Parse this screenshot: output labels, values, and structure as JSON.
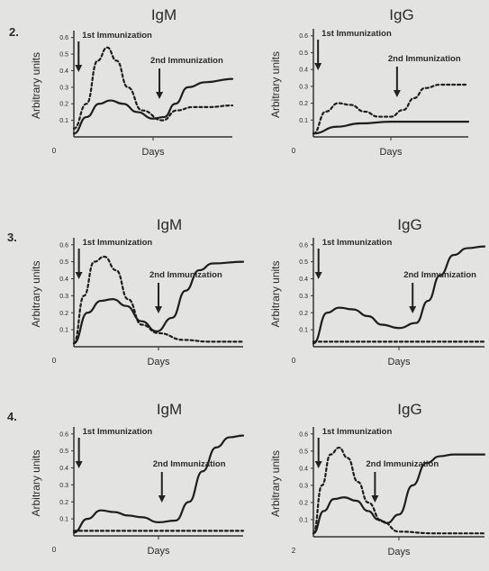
{
  "rows": [
    {
      "number": "2."
    },
    {
      "number": "3."
    },
    {
      "number": "4."
    }
  ],
  "chart_data": [
    {
      "type": "line",
      "row": 1,
      "col": 1,
      "title": "IgM",
      "xlabel": "Days",
      "ylabel": "Arbitrary units",
      "yticks": [
        "0.6",
        "0.5",
        "0.4",
        "0.3",
        "0.2",
        "0.1"
      ],
      "ylim": [
        0,
        0.62
      ],
      "xtick_origin": "0",
      "xlim": [
        0,
        10
      ],
      "series": [
        {
          "style": "dashed",
          "x": [
            0,
            0.8,
            1.5,
            2.1,
            2.7,
            3.4,
            4.3,
            5.6,
            6.5,
            7.5,
            8.5,
            10
          ],
          "y": [
            0.05,
            0.2,
            0.46,
            0.54,
            0.46,
            0.3,
            0.16,
            0.1,
            0.16,
            0.18,
            0.18,
            0.19
          ]
        },
        {
          "style": "solid",
          "x": [
            0,
            0.8,
            1.6,
            2.3,
            3.1,
            4.0,
            5.0,
            5.7,
            6.4,
            7.2,
            8.3,
            10
          ],
          "y": [
            0.02,
            0.12,
            0.2,
            0.22,
            0.2,
            0.15,
            0.11,
            0.12,
            0.2,
            0.3,
            0.33,
            0.35
          ]
        }
      ],
      "annotations": [
        {
          "text": "1st Immunization",
          "x": 0.3
        },
        {
          "text": "2nd Immunization",
          "x": 5.4
        }
      ]
    },
    {
      "type": "line",
      "row": 1,
      "col": 2,
      "title": "IgG",
      "xlabel": "Days",
      "ylabel": "Arbitrary units",
      "yticks": [
        "0.6",
        "0.5",
        "0.4",
        "0.3",
        "0.2",
        "0.1"
      ],
      "ylim": [
        0,
        0.62
      ],
      "xtick_origin": "0",
      "xlim": [
        0,
        10
      ],
      "series": [
        {
          "style": "dashed",
          "x": [
            0,
            0.8,
            1.6,
            2.4,
            3.3,
            4.2,
            5.0,
            5.8,
            6.5,
            7.2,
            8.2,
            10
          ],
          "y": [
            0.02,
            0.15,
            0.2,
            0.19,
            0.15,
            0.12,
            0.12,
            0.16,
            0.23,
            0.29,
            0.31,
            0.31
          ]
        },
        {
          "style": "solid",
          "x": [
            0,
            1.5,
            3,
            5,
            7,
            10
          ],
          "y": [
            0.02,
            0.06,
            0.08,
            0.09,
            0.09,
            0.09
          ]
        }
      ],
      "annotations": [
        {
          "text": "1st Immunization",
          "x": 0.3
        },
        {
          "text": "2nd Immunization",
          "x": 5.4
        }
      ]
    },
    {
      "type": "line",
      "row": 2,
      "col": 1,
      "title": "IgM",
      "xlabel": "Days",
      "ylabel": "Arbitrary units",
      "yticks": [
        "0.6",
        "0.5",
        "0.4",
        "0.3",
        "0.2",
        "0.1"
      ],
      "ylim": [
        0,
        0.62
      ],
      "xtick_origin": "0",
      "xlim": [
        0,
        10
      ],
      "series": [
        {
          "style": "dashed",
          "x": [
            0,
            0.6,
            1.2,
            1.8,
            2.5,
            3.2,
            4.0,
            5.0,
            6.5,
            8,
            10
          ],
          "y": [
            0.02,
            0.3,
            0.5,
            0.53,
            0.45,
            0.28,
            0.13,
            0.08,
            0.04,
            0.03,
            0.03
          ]
        },
        {
          "style": "solid",
          "x": [
            0,
            0.8,
            1.6,
            2.3,
            3.1,
            4.0,
            4.9,
            5.8,
            6.6,
            7.4,
            8.2,
            10
          ],
          "y": [
            0.02,
            0.2,
            0.27,
            0.28,
            0.24,
            0.15,
            0.09,
            0.17,
            0.33,
            0.45,
            0.49,
            0.5
          ]
        }
      ],
      "annotations": [
        {
          "text": "1st Immunization",
          "x": 0.3
        },
        {
          "text": "2nd Immunization",
          "x": 5.0
        }
      ]
    },
    {
      "type": "line",
      "row": 2,
      "col": 2,
      "title": "IgG",
      "xlabel": "Days",
      "ylabel": "Arbitrary units",
      "yticks": [
        "0.6",
        "0.5",
        "0.4",
        "0.3",
        "0.2",
        "0.1"
      ],
      "ylim": [
        0,
        0.62
      ],
      "xtick_origin": "0",
      "xlim": [
        0,
        10
      ],
      "series": [
        {
          "style": "solid",
          "x": [
            0,
            0.8,
            1.5,
            2.3,
            3.2,
            4.0,
            5.0,
            6.0,
            6.7,
            7.4,
            8.2,
            9,
            10
          ],
          "y": [
            0.02,
            0.2,
            0.23,
            0.22,
            0.18,
            0.13,
            0.11,
            0.14,
            0.27,
            0.42,
            0.54,
            0.58,
            0.59
          ]
        },
        {
          "style": "dashed",
          "x": [
            0,
            3,
            6,
            10
          ],
          "y": [
            0.03,
            0.03,
            0.03,
            0.03
          ]
        }
      ],
      "annotations": [
        {
          "text": "1st Immunization",
          "x": 0.3
        },
        {
          "text": "2nd Immunization",
          "x": 5.8
        }
      ]
    },
    {
      "type": "line",
      "row": 3,
      "col": 1,
      "title": "IgM",
      "xlabel": "Days",
      "ylabel": "Arbitrary units",
      "yticks": [
        "0.6",
        "0.5",
        "0.4",
        "0.3",
        "0.2",
        "0.1"
      ],
      "ylim": [
        0,
        0.62
      ],
      "xtick_origin": "0",
      "xlim": [
        0,
        10
      ],
      "series": [
        {
          "style": "solid",
          "x": [
            0,
            0.8,
            1.6,
            2.4,
            3.2,
            4.0,
            5.0,
            6.0,
            6.8,
            7.6,
            8.4,
            9.2,
            10
          ],
          "y": [
            0.02,
            0.1,
            0.15,
            0.14,
            0.12,
            0.11,
            0.08,
            0.09,
            0.2,
            0.38,
            0.52,
            0.58,
            0.59
          ]
        },
        {
          "style": "dashed",
          "x": [
            0,
            3,
            6,
            10
          ],
          "y": [
            0.03,
            0.03,
            0.03,
            0.03
          ]
        }
      ],
      "annotations": [
        {
          "text": "1st Immunization",
          "x": 0.3
        },
        {
          "text": "2nd Immunization",
          "x": 5.2
        }
      ]
    },
    {
      "type": "line",
      "row": 3,
      "col": 2,
      "title": "IgG",
      "xlabel": "Days",
      "ylabel": "Arbitrary units",
      "yticks": [
        "0.6",
        "0.5",
        "0.4",
        "0.3",
        "0.2",
        "0.1"
      ],
      "ylim": [
        0,
        0.62
      ],
      "xtick_origin": "2",
      "xlim": [
        0,
        10
      ],
      "series": [
        {
          "style": "dashed",
          "x": [
            0,
            0.5,
            1.0,
            1.5,
            2.0,
            2.6,
            3.2,
            4.0,
            5.0,
            7,
            10
          ],
          "y": [
            0.02,
            0.3,
            0.48,
            0.52,
            0.46,
            0.32,
            0.2,
            0.09,
            0.03,
            0.02,
            0.02
          ]
        },
        {
          "style": "solid",
          "x": [
            0,
            0.6,
            1.2,
            1.8,
            2.5,
            3.2,
            3.8,
            4.3,
            5.0,
            5.8,
            6.6,
            7.4,
            8.2,
            10
          ],
          "y": [
            0.02,
            0.15,
            0.22,
            0.23,
            0.21,
            0.15,
            0.1,
            0.08,
            0.13,
            0.3,
            0.43,
            0.47,
            0.48,
            0.48
          ]
        }
      ],
      "annotations": [
        {
          "text": "1st Immunization",
          "x": 0.3
        },
        {
          "text": "2nd Immunization",
          "x": 3.6
        }
      ]
    }
  ]
}
